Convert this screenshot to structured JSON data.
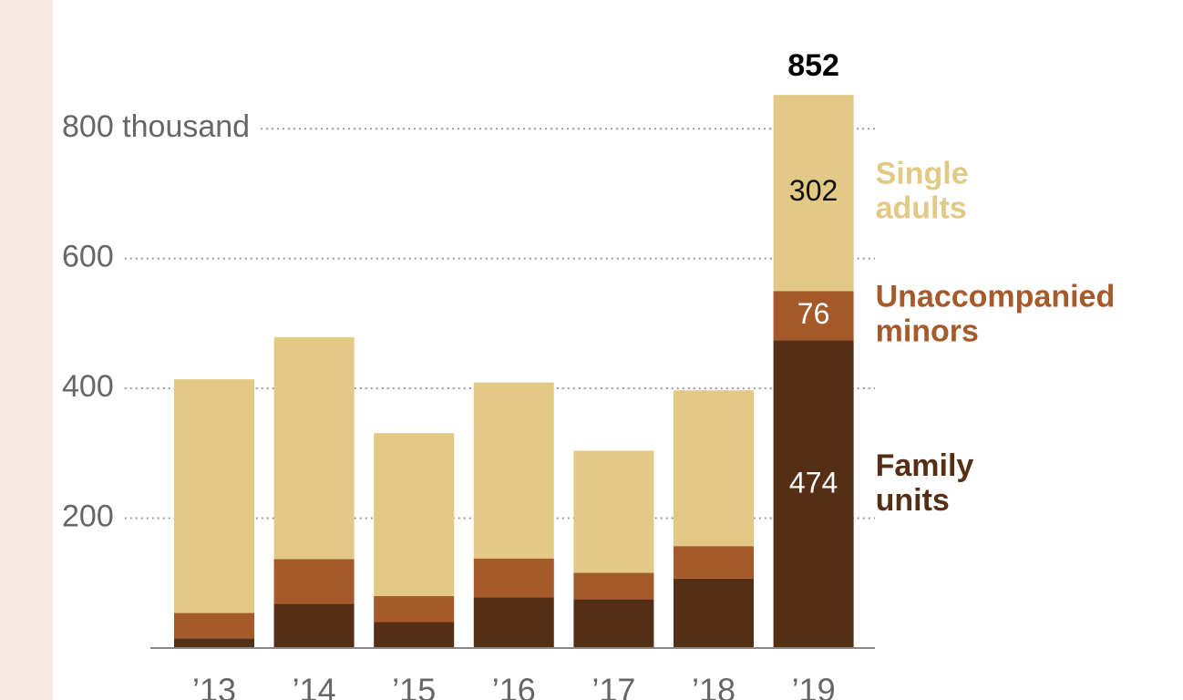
{
  "chart_data": {
    "type": "stacked_bar",
    "categories": [
      "’13",
      "’14",
      "’15",
      "’16",
      "’17",
      "’18",
      "’19"
    ],
    "series": [
      {
        "name": "Family units",
        "color": "#542f16",
        "values": [
          15,
          68,
          40,
          78,
          75,
          107,
          474
        ],
        "value_labels": [
          null,
          null,
          null,
          null,
          null,
          null,
          "474"
        ]
      },
      {
        "name": "Unaccompanied minors",
        "color": "#a65a2a",
        "values": [
          39,
          69,
          40,
          60,
          41,
          50,
          76
        ],
        "value_labels": [
          null,
          null,
          null,
          null,
          null,
          null,
          "76"
        ]
      },
      {
        "name": "Single adults",
        "color": "#e2c986",
        "values": [
          360,
          342,
          251,
          271,
          188,
          240,
          302
        ],
        "value_labels": [
          null,
          null,
          null,
          null,
          null,
          null,
          "302"
        ]
      }
    ],
    "total_annotation": {
      "category": "’19",
      "value": 852
    },
    "ylim": [
      0,
      900
    ],
    "yticks": [
      200,
      400,
      600,
      {
        "value": 800,
        "label": "800 thousand"
      }
    ],
    "grid": true
  }
}
